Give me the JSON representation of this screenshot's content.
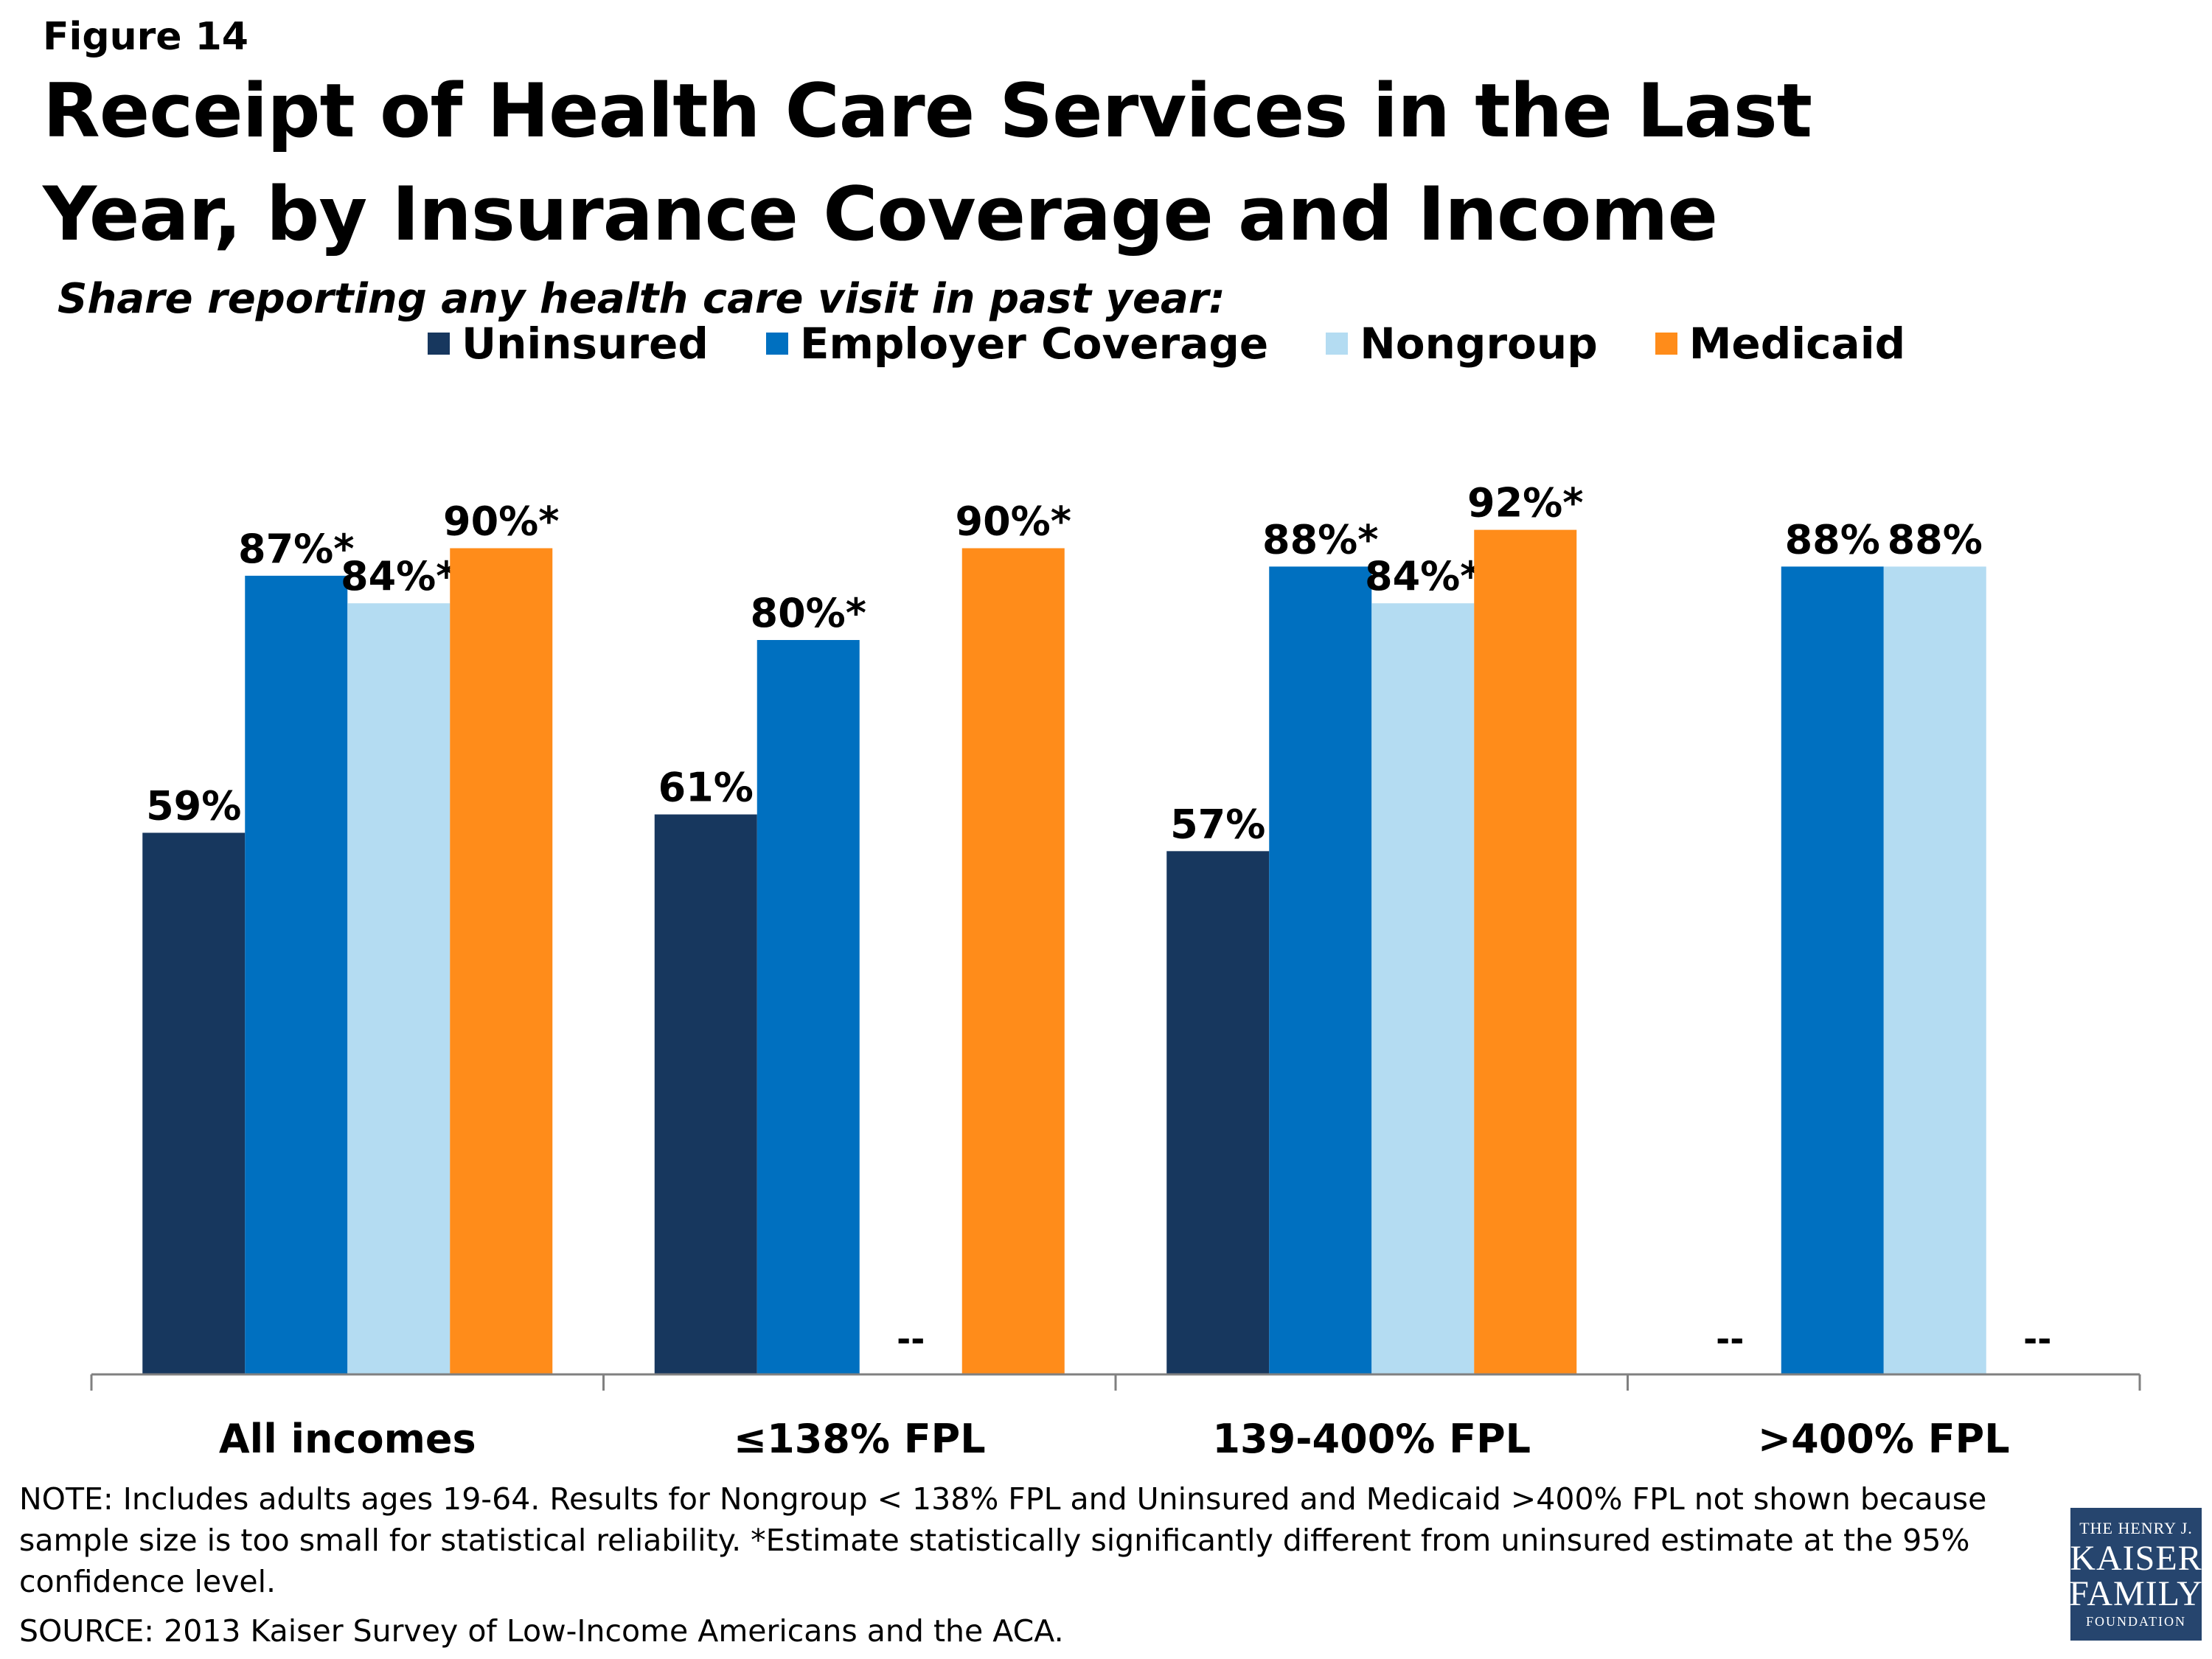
{
  "figure_label": "Figure 14",
  "title": "Receipt of Health Care Services in the Last Year, by Insurance Coverage and Income",
  "subtitle": "Share reporting any health care visit in past year:",
  "legend": [
    {
      "name": "Uninsured",
      "color": "#17375e"
    },
    {
      "name": "Employer Coverage",
      "color": "#0070c0"
    },
    {
      "name": "Nongroup",
      "color": "#b4dcf2"
    },
    {
      "name": "Medicaid",
      "color": "#ff8c1a"
    }
  ],
  "chart_data": {
    "type": "bar",
    "title": "Receipt of Health Care Services in the Last Year, by Insurance Coverage and Income",
    "subtitle": "Share reporting any health care visit in past year:",
    "categories": [
      "All incomes",
      "≤138% FPL",
      "139-400% FPL",
      ">400% FPL"
    ],
    "series": [
      {
        "name": "Uninsured",
        "color": "#17375e",
        "values": [
          59,
          61,
          57,
          null
        ],
        "labels": [
          "59%",
          "61%",
          "57%",
          "--"
        ]
      },
      {
        "name": "Employer Coverage",
        "color": "#0070c0",
        "values": [
          87,
          80,
          88,
          88
        ],
        "labels": [
          "87%*",
          "80%*",
          "88%*",
          "88%"
        ]
      },
      {
        "name": "Nongroup",
        "color": "#b4dcf2",
        "values": [
          84,
          null,
          84,
          88
        ],
        "labels": [
          "84%*",
          "--",
          "84%*",
          "88%"
        ]
      },
      {
        "name": "Medicaid",
        "color": "#ff8c1a",
        "values": [
          90,
          90,
          92,
          null
        ],
        "labels": [
          "90%*",
          "90%*",
          "92%*",
          "--"
        ]
      }
    ],
    "ylim": [
      0,
      100
    ],
    "grid": false,
    "legend_position": "top"
  },
  "note": "NOTE: Includes adults ages 19-64. Results for Nongroup < 138% FPL and Uninsured and Medicaid >400% FPL not shown because sample size is too small for statistical reliability. *Estimate statistically significantly different from uninsured estimate at the 95% confidence level.",
  "source": "SOURCE: 2013 Kaiser Survey of Low-Income Americans and the ACA.",
  "logo": {
    "line1": "THE HENRY J.",
    "line2": "KAISER",
    "line3": "FAMILY",
    "line4": "FOUNDATION"
  }
}
